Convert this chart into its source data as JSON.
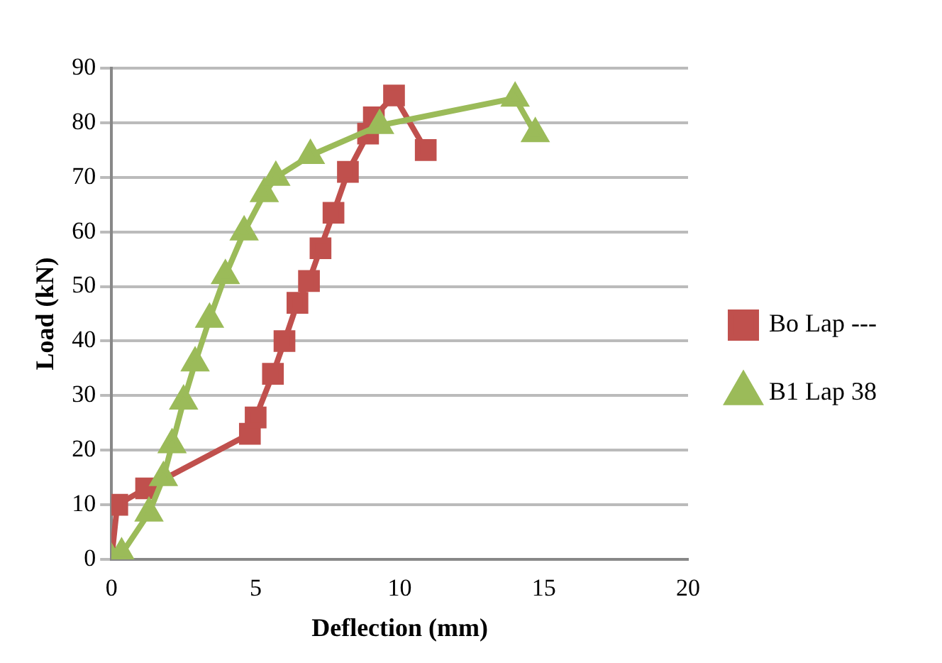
{
  "chart_data": {
    "type": "line",
    "xlabel": "Deflection (mm)",
    "ylabel": "Load (kN)",
    "xlim": [
      0,
      20
    ],
    "xticks": [
      0,
      5,
      10,
      15,
      20
    ],
    "ylim": [
      0,
      90
    ],
    "yticks": [
      0,
      10,
      20,
      30,
      40,
      50,
      60,
      70,
      80,
      90
    ],
    "grid": "y",
    "legend": "right",
    "line_style": "solid",
    "series": [
      {
        "name": "Bo Lap ---",
        "color": "#c0504d",
        "marker": "square",
        "x": [
          0,
          0.2,
          1.2,
          4.8,
          5,
          5.6,
          6,
          6.45,
          6.85,
          7.25,
          7.7,
          8.2,
          8.9,
          9.1,
          9.8,
          10.9
        ],
        "values": [
          0,
          10,
          13,
          23,
          26,
          34,
          40,
          47,
          51,
          57,
          63.5,
          71,
          78,
          81,
          85,
          75
        ]
      },
      {
        "name": "B1 Lap 38",
        "color": "#9bbb59",
        "marker": "triangle",
        "x": [
          0,
          0.35,
          1.3,
          1.8,
          2.1,
          2.5,
          2.9,
          3.4,
          3.95,
          4.6,
          5.3,
          5.7,
          6.9,
          9.3,
          14,
          14.7
        ],
        "values": [
          0,
          1,
          8.5,
          15,
          21,
          29,
          36,
          44,
          52,
          60,
          67,
          70,
          74,
          79.5,
          84.5,
          78
        ]
      }
    ]
  }
}
